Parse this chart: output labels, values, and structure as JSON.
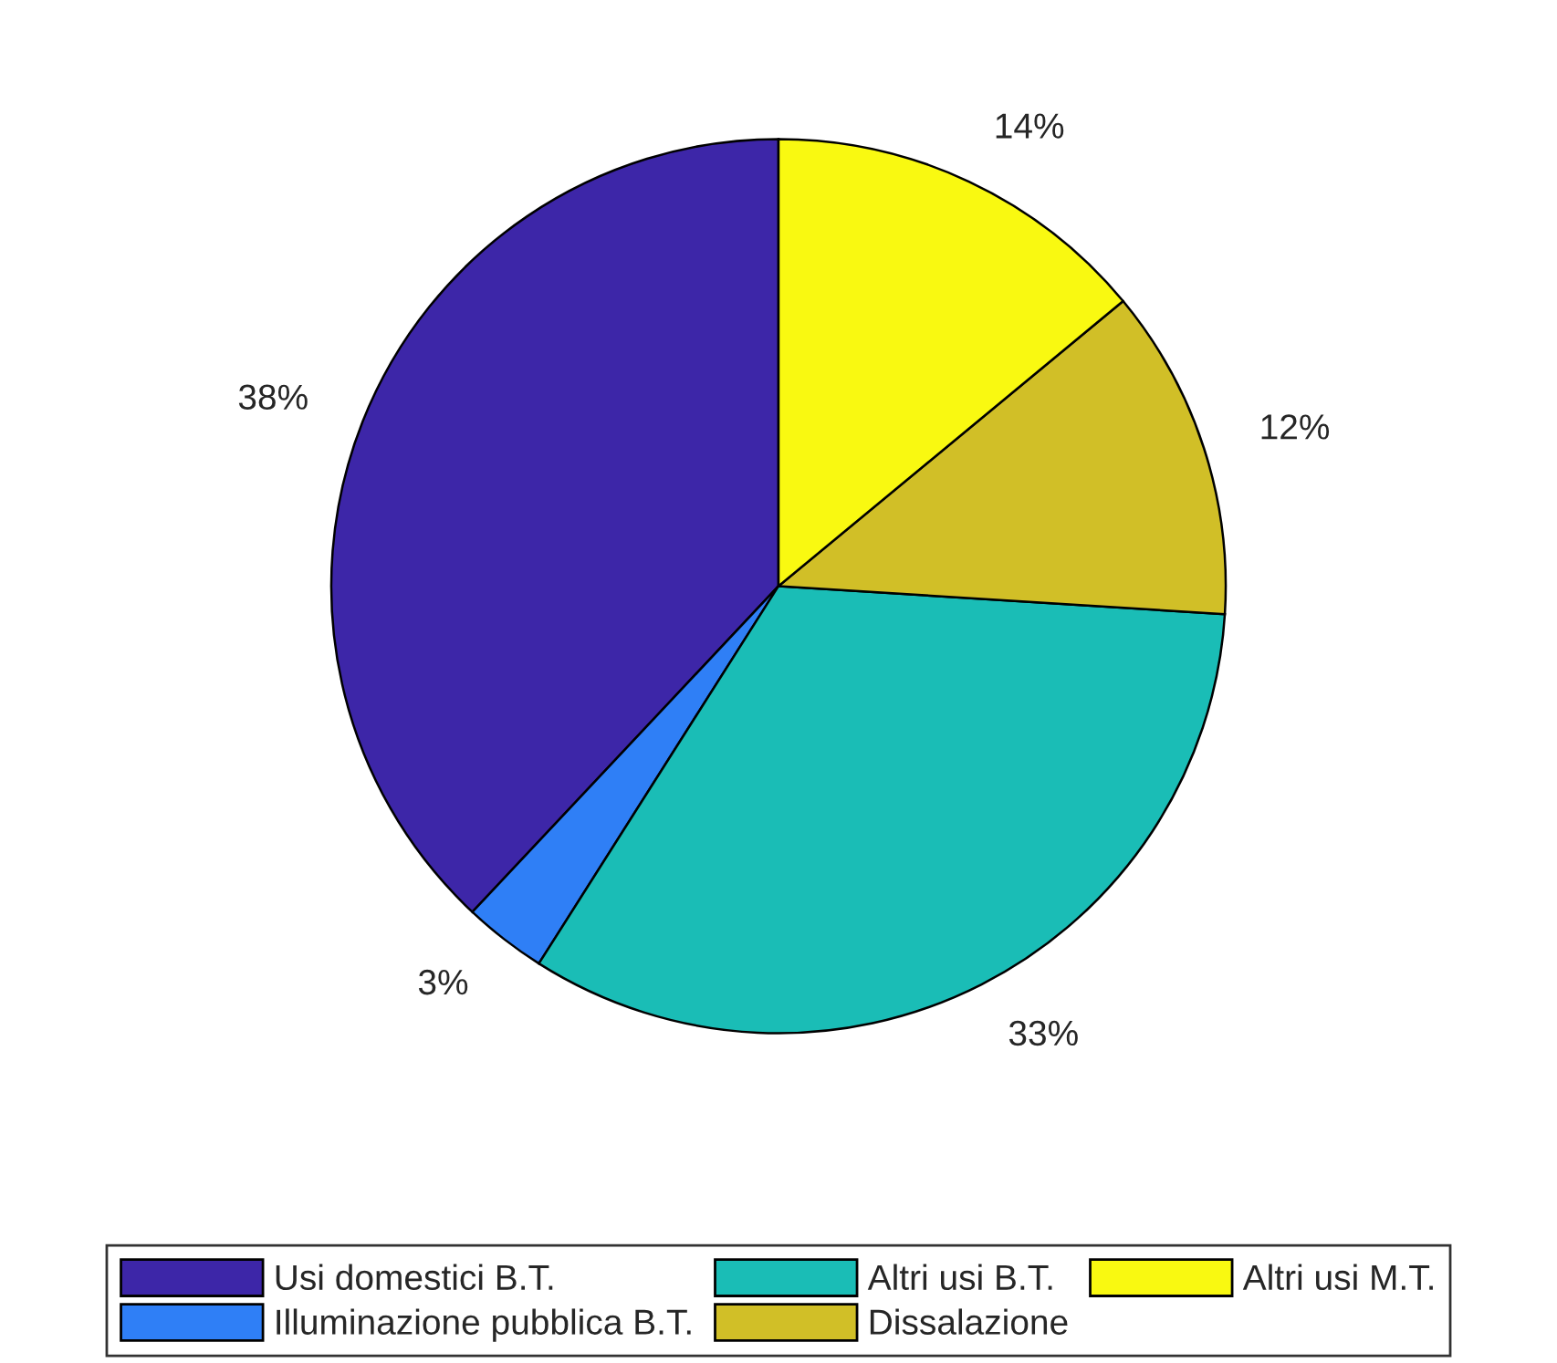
{
  "chart_data": {
    "type": "pie",
    "categories": [
      "Usi domestici B.T.",
      "Illuminazione pubblica B.T.",
      "Altri usi B.T.",
      "Dissalazione",
      "Altri usi M.T."
    ],
    "values": [
      38,
      3,
      33,
      12,
      14
    ],
    "value_labels": [
      "38%",
      "3%",
      "33%",
      "12%",
      "14%"
    ],
    "colors": [
      "#3d26a8",
      "#2f7ff6",
      "#1abdb6",
      "#d1bf27",
      "#f9f911"
    ],
    "legend": "bottom"
  }
}
